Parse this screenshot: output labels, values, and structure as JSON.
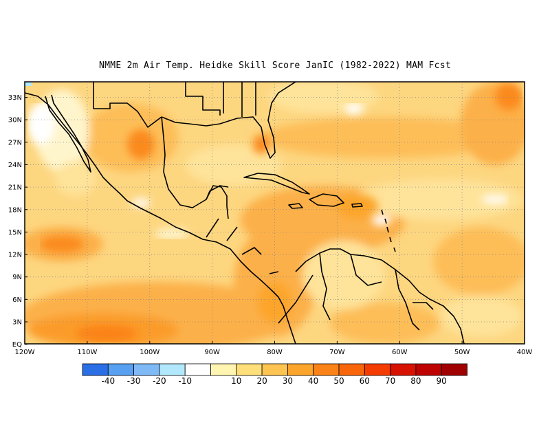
{
  "title": "NMME  2m Air Temp. Heidke Skill Score JanIC (1982-2022) MAM Fcst",
  "latitude_labels": [
    "33N",
    "30N",
    "27N",
    "24N",
    "21N",
    "18N",
    "15N",
    "12N",
    "9N",
    "6N",
    "3N",
    "EQ"
  ],
  "longitude_labels": [
    "120W",
    "110W",
    "100W",
    "90W",
    "80W",
    "70W",
    "60W",
    "50W",
    "40W"
  ],
  "colorbar": {
    "colors": [
      "#2b6fe6",
      "#58a0f2",
      "#7fb9f6",
      "#b2e8fb",
      "#ffffff",
      "#fff5b0",
      "#ffdf7a",
      "#fdc452",
      "#fca52c",
      "#fb8216",
      "#f96609",
      "#f53c00",
      "#d81200",
      "#bd0200",
      "#a10000"
    ],
    "labels": [
      "-40",
      "-30",
      "-20",
      "-10",
      "10",
      "20",
      "30",
      "40",
      "50",
      "60",
      "70",
      "80",
      "90"
    ]
  }
}
